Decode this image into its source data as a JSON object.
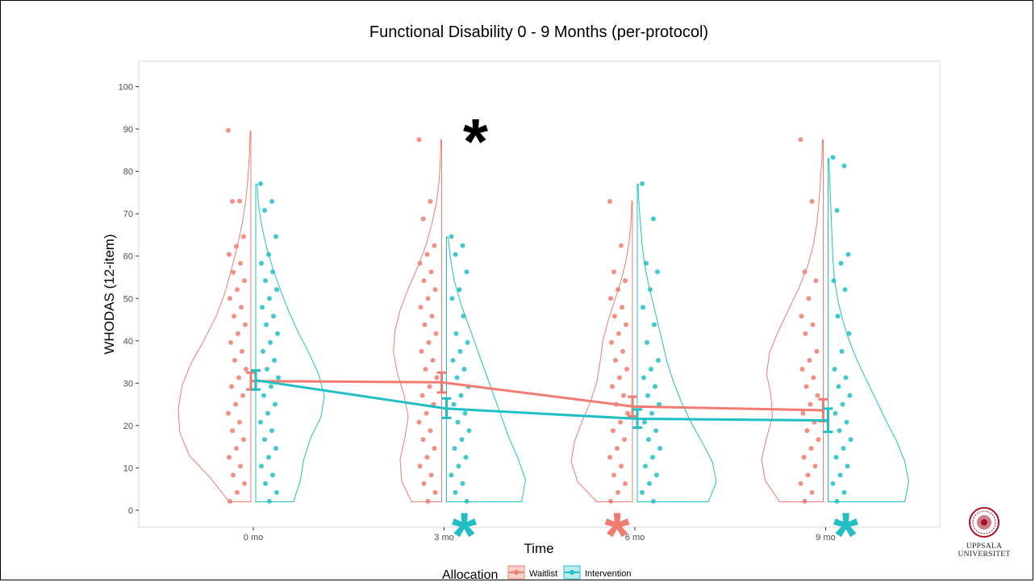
{
  "logo": {
    "icon": "university-seal-icon",
    "line1": "UPPSALA",
    "line2": "UNIVERSITET",
    "color": "#a3142a"
  },
  "chart_data": {
    "type": "violin",
    "title": "Functional Disability 0 - 9 Months (per-protocol)",
    "xlabel": "Time",
    "ylabel": "WHODAS (12-item)",
    "categories": [
      "0 mo",
      "3 mo",
      "6 mo",
      "9 mo"
    ],
    "ylim": [
      -4,
      106
    ],
    "yticks": [
      0,
      10,
      20,
      30,
      40,
      50,
      60,
      70,
      80,
      90,
      100
    ],
    "grid": false,
    "legend": {
      "title": "Allocation",
      "position": "bottom",
      "entries": [
        "Waitlist",
        "Intervention"
      ]
    },
    "colors": {
      "Waitlist": "#f07c70",
      "Intervention": "#21bfc4"
    },
    "series": [
      {
        "name": "Waitlist",
        "means": [
          30.5,
          30.2,
          24.5,
          23.6
        ],
        "ci_low": [
          28.5,
          27.8,
          22.2,
          21.0
        ],
        "ci_high": [
          32.5,
          32.5,
          26.8,
          26.2
        ],
        "violin_range": [
          [
            2,
            89.5
          ],
          [
            2,
            87.5
          ],
          [
            2,
            73
          ],
          [
            2,
            87.5
          ]
        ],
        "points": [
          [
            89.7,
            73,
            72.9,
            64.6,
            62.3,
            60.4,
            58.3,
            56.2,
            54.2,
            52.1,
            50,
            47.9,
            45.8,
            43.8,
            41.7,
            39.6,
            37.5,
            35.4,
            33.3,
            31.3,
            29.2,
            27.1,
            25,
            22.9,
            20.8,
            18.8,
            16.7,
            14.6,
            12.5,
            10.4,
            8.3,
            6.3,
            4.2,
            2.1
          ],
          [
            87.5,
            72.9,
            68.8,
            62.5,
            60.4,
            58.3,
            56.3,
            54.2,
            52.1,
            50,
            47.9,
            45.8,
            43.8,
            41.7,
            39.6,
            37.5,
            35.4,
            33.3,
            31.3,
            29.2,
            27.1,
            25,
            22.9,
            20.8,
            18.8,
            16.7,
            14.6,
            12.5,
            10.4,
            8.3,
            6.3,
            4.2,
            2.1
          ],
          [
            72.9,
            62.5,
            56.3,
            54.2,
            52.1,
            50,
            47.9,
            45.8,
            43.8,
            41.7,
            39.6,
            37.5,
            35.4,
            33.3,
            31.3,
            29.2,
            27.1,
            25,
            22.9,
            20.8,
            18.8,
            16.7,
            14.6,
            12.5,
            10.4,
            8.3,
            6.3,
            4.2,
            2.1
          ],
          [
            87.5,
            72.9,
            56.3,
            54.2,
            50,
            45.8,
            43.8,
            41.7,
            37.5,
            35.4,
            33.3,
            31.3,
            29.2,
            27.1,
            25,
            22.9,
            20.8,
            18.8,
            16.7,
            14.6,
            12.5,
            10.4,
            8.3,
            6.3,
            4.2,
            2.1
          ]
        ]
      },
      {
        "name": "Intervention",
        "means": [
          30.7,
          24.0,
          21.6,
          21.2
        ],
        "ci_low": [
          28.5,
          21.8,
          19.5,
          18.5
        ],
        "ci_high": [
          33.0,
          26.4,
          23.8,
          24.0
        ],
        "violin_range": [
          [
            2,
            77
          ],
          [
            2,
            64.5
          ],
          [
            2,
            77
          ],
          [
            2,
            83
          ]
        ],
        "points": [
          [
            77.1,
            72.9,
            70.8,
            64.6,
            60.4,
            58.3,
            56.3,
            54.2,
            52.1,
            50,
            47.9,
            45.8,
            43.8,
            41.7,
            39.6,
            37.5,
            35.4,
            33.3,
            31.3,
            29.2,
            27.1,
            25,
            22.9,
            20.8,
            18.8,
            16.7,
            14.6,
            12.5,
            10.4,
            8.3,
            6.3,
            4.2,
            2.1
          ],
          [
            64.6,
            62.5,
            60.4,
            56.3,
            52.1,
            50,
            45.8,
            41.7,
            39.6,
            37.5,
            35.4,
            33.3,
            31.3,
            29.2,
            27.1,
            25,
            22.9,
            20.8,
            18.8,
            16.7,
            14.6,
            12.5,
            10.4,
            8.3,
            6.3,
            4.2,
            2.1
          ],
          [
            77.1,
            68.8,
            58.3,
            56.3,
            52.1,
            47.9,
            43.8,
            39.6,
            35.4,
            33.3,
            31.3,
            29.2,
            27.1,
            25,
            22.9,
            20.8,
            18.8,
            16.7,
            14.6,
            12.5,
            10.4,
            8.3,
            6.3,
            4.2,
            2.1
          ],
          [
            83.3,
            81.3,
            70.8,
            60.4,
            58.3,
            54.2,
            52.1,
            45.8,
            41.7,
            37.5,
            33.3,
            31.3,
            29.2,
            27.1,
            25,
            22.9,
            20.8,
            18.8,
            16.7,
            14.6,
            12.5,
            10.4,
            8.3,
            6.3,
            4.2,
            2.1
          ]
        ]
      }
    ],
    "annotations": [
      {
        "text": "*",
        "category": "3 mo",
        "y": 91,
        "color": "#000000"
      },
      {
        "text": "*",
        "category": "3 mo",
        "y": -2,
        "color": "#21bfc4"
      },
      {
        "text": "*",
        "category": "6 mo",
        "y": -2,
        "color": "#f07c70"
      },
      {
        "text": "*",
        "category": "9 mo",
        "y": -2,
        "color": "#21bfc4"
      }
    ]
  }
}
